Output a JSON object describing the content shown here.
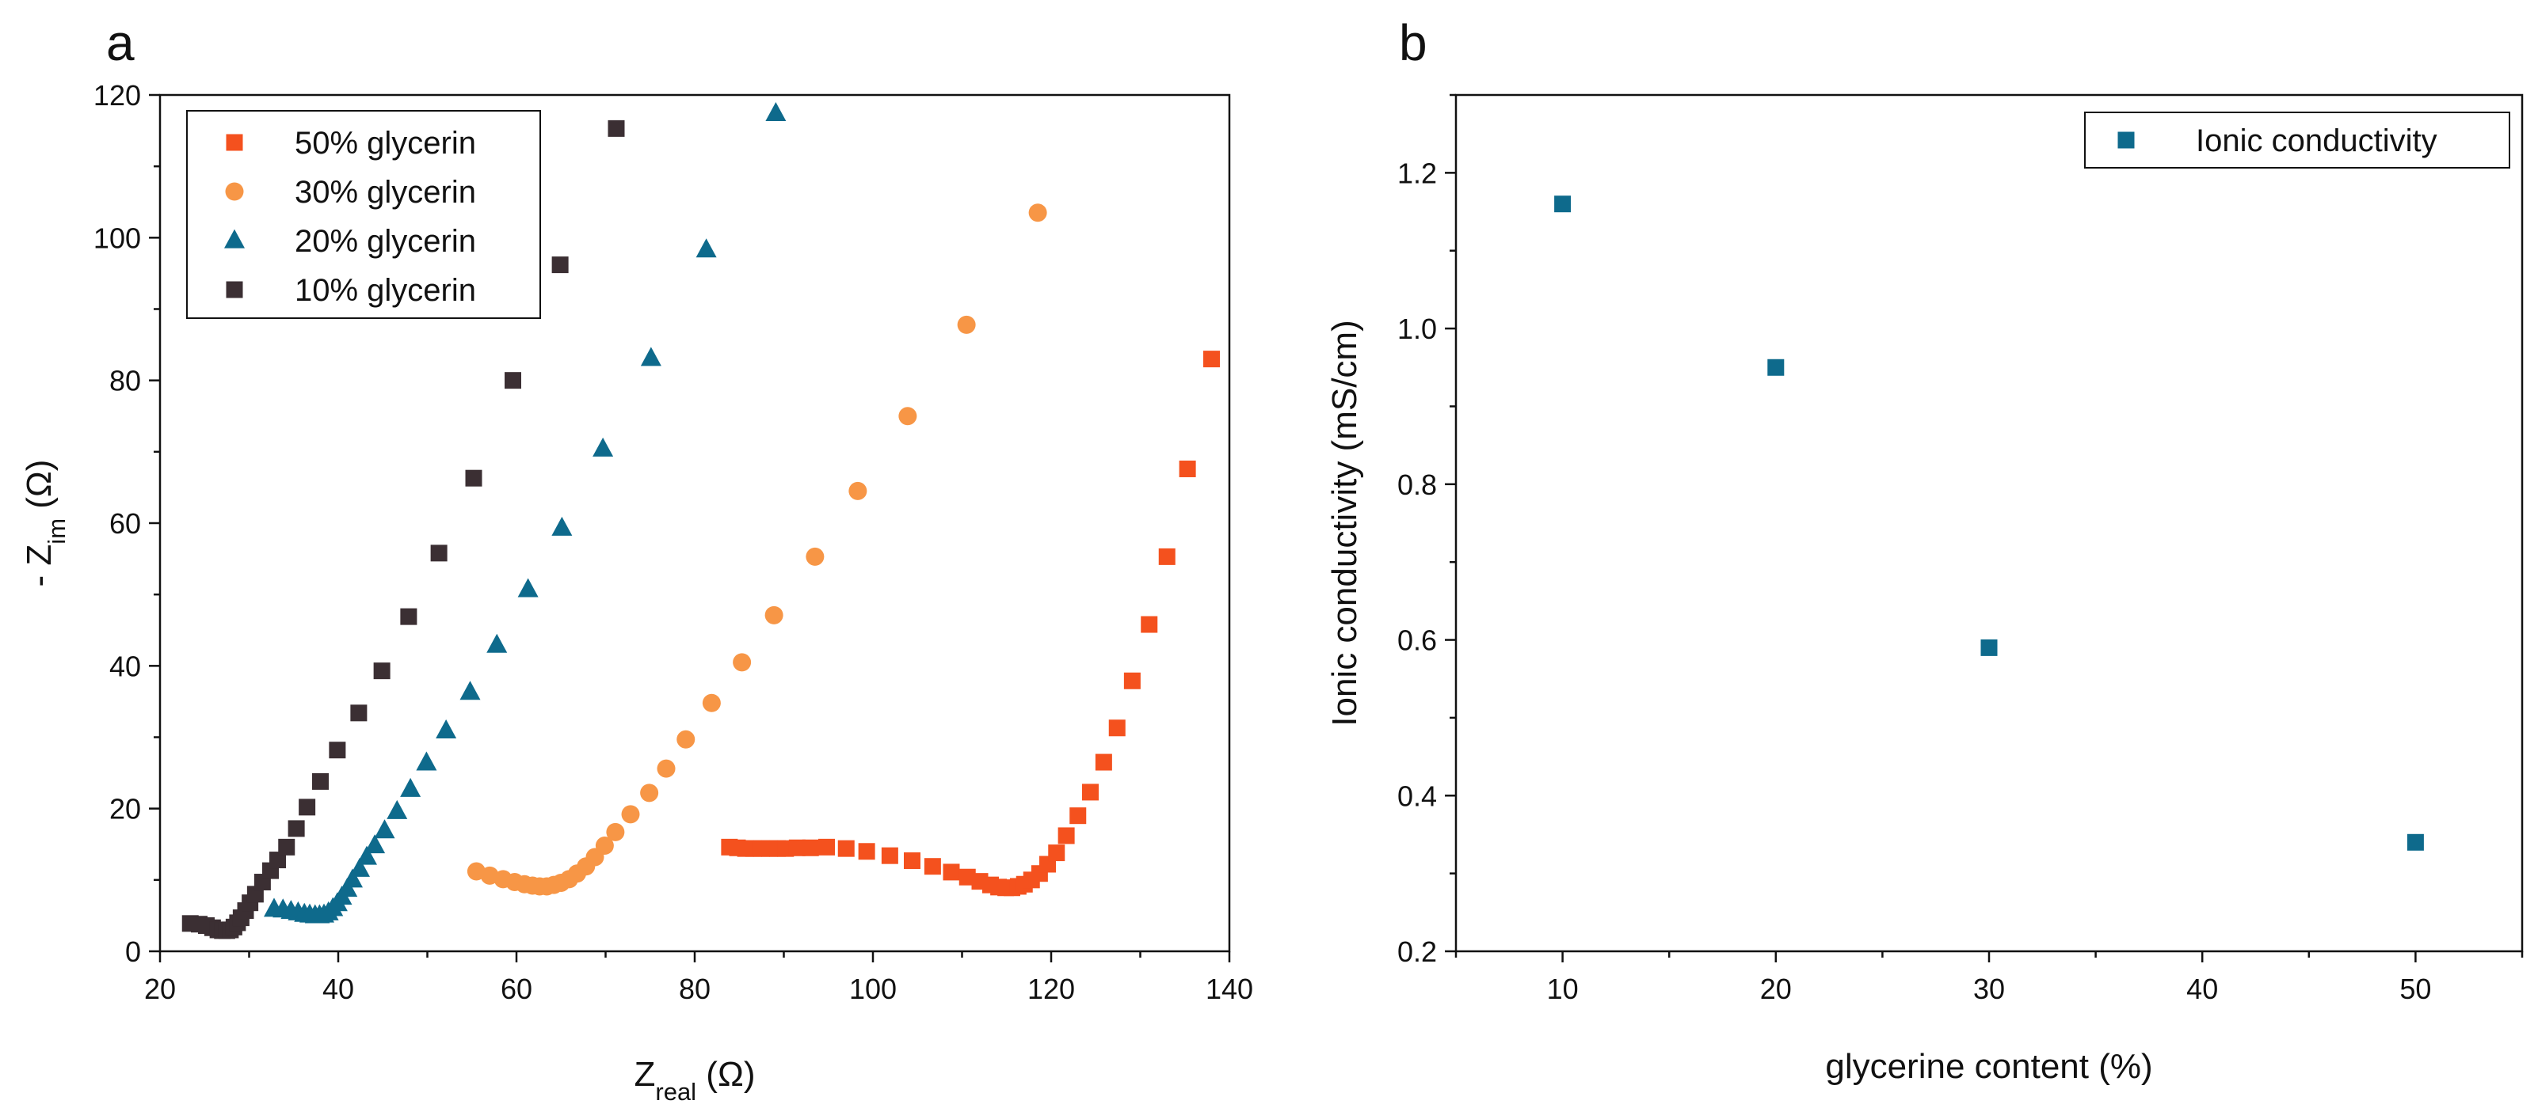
{
  "panels": {
    "a": {
      "label": "a"
    },
    "b": {
      "label": "b"
    }
  },
  "chart_data": [
    {
      "type": "scatter",
      "panel": "a",
      "xlabel": {
        "main": "Z",
        "sub": "real",
        "unit": " (Ω)"
      },
      "ylabel": {
        "prefix": "- Z",
        "sub": "im",
        "unit": " (Ω)"
      },
      "xlim": [
        20,
        140
      ],
      "ylim": [
        0,
        120
      ],
      "xticks": [
        20,
        40,
        60,
        80,
        100,
        120,
        140
      ],
      "yticks": [
        0,
        20,
        40,
        60,
        80,
        100,
        120
      ],
      "grid": false,
      "legend": "top-left",
      "series": [
        {
          "name": "50% glycerin",
          "marker": "square",
          "color": "#f4511e",
          "points": [
            [
              83.9,
              14.6
            ],
            [
              84.8,
              14.5
            ],
            [
              85.7,
              14.4
            ],
            [
              86.6,
              14.4
            ],
            [
              87.5,
              14.4
            ],
            [
              88.4,
              14.4
            ],
            [
              89.3,
              14.4
            ],
            [
              90.2,
              14.4
            ],
            [
              91.5,
              14.5
            ],
            [
              93.0,
              14.5
            ],
            [
              94.8,
              14.6
            ],
            [
              97.0,
              14.4
            ],
            [
              99.3,
              14.0
            ],
            [
              101.9,
              13.4
            ],
            [
              104.4,
              12.7
            ],
            [
              106.7,
              11.9
            ],
            [
              108.8,
              11.1
            ],
            [
              110.6,
              10.4
            ],
            [
              112.0,
              9.8
            ],
            [
              113.2,
              9.3
            ],
            [
              114.1,
              9.0
            ],
            [
              114.9,
              8.9
            ],
            [
              115.6,
              8.9
            ],
            [
              116.3,
              9.1
            ],
            [
              117.0,
              9.4
            ],
            [
              117.8,
              10.0
            ],
            [
              118.7,
              10.9
            ],
            [
              119.6,
              12.2
            ],
            [
              120.6,
              13.8
            ],
            [
              121.7,
              16.2
            ],
            [
              123.0,
              19.0
            ],
            [
              124.4,
              22.3
            ],
            [
              125.9,
              26.5
            ],
            [
              127.4,
              31.3
            ],
            [
              129.1,
              37.9
            ],
            [
              131.0,
              45.8
            ],
            [
              133.0,
              55.3
            ],
            [
              135.3,
              67.6
            ],
            [
              138.0,
              83.0
            ]
          ]
        },
        {
          "name": "30% glycerin",
          "marker": "circle",
          "color": "#f79646",
          "points": [
            [
              55.5,
              11.2
            ],
            [
              57.0,
              10.6
            ],
            [
              58.5,
              10.1
            ],
            [
              59.8,
              9.7
            ],
            [
              60.9,
              9.4
            ],
            [
              61.8,
              9.2
            ],
            [
              62.6,
              9.1
            ],
            [
              63.4,
              9.1
            ],
            [
              64.2,
              9.3
            ],
            [
              65.0,
              9.6
            ],
            [
              65.9,
              10.1
            ],
            [
              66.8,
              10.9
            ],
            [
              67.8,
              11.9
            ],
            [
              68.8,
              13.2
            ],
            [
              69.9,
              14.8
            ],
            [
              71.1,
              16.7
            ],
            [
              72.8,
              19.2
            ],
            [
              74.9,
              22.2
            ],
            [
              76.8,
              25.6
            ],
            [
              79.0,
              29.7
            ],
            [
              81.9,
              34.8
            ],
            [
              85.3,
              40.5
            ],
            [
              88.9,
              47.1
            ],
            [
              93.5,
              55.3
            ],
            [
              98.3,
              64.5
            ],
            [
              103.9,
              75.0
            ],
            [
              110.5,
              87.8
            ],
            [
              118.5,
              103.5
            ]
          ]
        },
        {
          "name": "20% glycerin",
          "marker": "triangle",
          "color": "#0e6a8c",
          "points": [
            [
              32.8,
              5.9
            ],
            [
              33.8,
              5.8
            ],
            [
              34.7,
              5.6
            ],
            [
              35.5,
              5.4
            ],
            [
              36.2,
              5.2
            ],
            [
              36.8,
              5.1
            ],
            [
              37.4,
              5.0
            ],
            [
              37.9,
              5.0
            ],
            [
              38.4,
              5.1
            ],
            [
              38.9,
              5.4
            ],
            [
              39.4,
              6.0
            ],
            [
              39.9,
              6.7
            ],
            [
              40.4,
              7.6
            ],
            [
              41.0,
              8.7
            ],
            [
              41.6,
              10.0
            ],
            [
              42.4,
              11.5
            ],
            [
              43.2,
              13.2
            ],
            [
              44.1,
              14.8
            ],
            [
              45.2,
              16.9
            ],
            [
              46.6,
              19.6
            ],
            [
              48.1,
              22.7
            ],
            [
              49.9,
              26.4
            ],
            [
              52.1,
              30.9
            ],
            [
              54.8,
              36.3
            ],
            [
              57.8,
              42.9
            ],
            [
              61.3,
              50.7
            ],
            [
              65.1,
              59.3
            ],
            [
              69.7,
              70.4
            ],
            [
              75.1,
              83.1
            ],
            [
              81.3,
              98.3
            ],
            [
              89.1,
              117.4
            ]
          ]
        },
        {
          "name": "10% glycerin",
          "marker": "square",
          "color": "#3b2f33",
          "points": [
            [
              23.4,
              3.9
            ],
            [
              24.4,
              3.8
            ],
            [
              25.2,
              3.6
            ],
            [
              25.9,
              3.3
            ],
            [
              26.5,
              3.0
            ],
            [
              27.0,
              2.9
            ],
            [
              27.5,
              2.9
            ],
            [
              27.9,
              3.0
            ],
            [
              28.3,
              3.4
            ],
            [
              28.7,
              4.0
            ],
            [
              29.1,
              4.7
            ],
            [
              29.6,
              5.7
            ],
            [
              30.1,
              6.8
            ],
            [
              30.7,
              8.0
            ],
            [
              31.5,
              9.7
            ],
            [
              32.4,
              11.3
            ],
            [
              33.2,
              12.8
            ],
            [
              34.2,
              14.6
            ],
            [
              35.3,
              17.2
            ],
            [
              36.5,
              20.2
            ],
            [
              38.0,
              23.8
            ],
            [
              39.9,
              28.2
            ],
            [
              42.3,
              33.4
            ],
            [
              44.9,
              39.3
            ],
            [
              47.9,
              46.9
            ],
            [
              51.3,
              55.8
            ],
            [
              55.2,
              66.3
            ],
            [
              59.6,
              80.0
            ],
            [
              64.9,
              96.2
            ],
            [
              71.2,
              115.3
            ]
          ]
        }
      ]
    },
    {
      "type": "scatter",
      "panel": "b",
      "xlabel": "glycerine content (%)",
      "ylabel": "Ionic conductivity (mS/cm)",
      "xlim": [
        5,
        55
      ],
      "ylim": [
        0.2,
        1.3
      ],
      "xticks": [
        10,
        20,
        30,
        40,
        50
      ],
      "yticks": [
        0.2,
        0.4,
        0.6,
        0.8,
        1.0,
        1.2
      ],
      "grid": false,
      "legend": "top-right",
      "series": [
        {
          "name": "Ionic conductivity",
          "marker": "square",
          "color": "#0e6a8c",
          "points": [
            [
              10,
              1.16
            ],
            [
              20,
              0.95
            ],
            [
              30,
              0.59
            ],
            [
              50,
              0.34
            ]
          ]
        }
      ]
    }
  ]
}
